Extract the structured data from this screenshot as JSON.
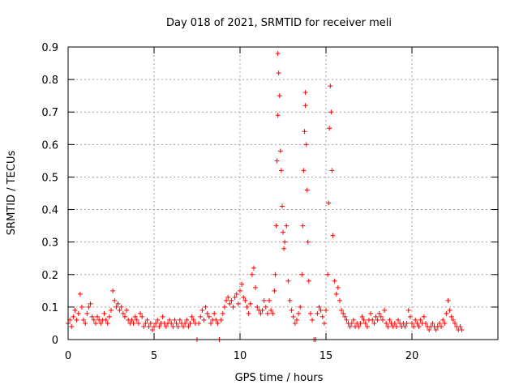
{
  "chart_data": {
    "type": "scatter",
    "title": "Day 018 of 2021, SRMTID for receiver meli",
    "xlabel": "GPS time / hours",
    "ylabel": "SRMTID / TECUs",
    "xlim": [
      0,
      25
    ],
    "ylim": [
      0,
      0.9
    ],
    "xticks": [
      "0",
      "5",
      "10",
      "15",
      "20"
    ],
    "yticks": [
      "0",
      "0.1",
      "0.2",
      "0.3",
      "0.4",
      "0.5",
      "0.6",
      "0.7",
      "0.8",
      "0.9"
    ],
    "grid": true,
    "marker": "+",
    "color": "#ff0000",
    "series": [
      {
        "name": "SRMTID",
        "points": [
          [
            0.0,
            0.05
          ],
          [
            0.1,
            0.06
          ],
          [
            0.2,
            0.04
          ],
          [
            0.3,
            0.07
          ],
          [
            0.4,
            0.09
          ],
          [
            0.5,
            0.06
          ],
          [
            0.6,
            0.08
          ],
          [
            0.7,
            0.14
          ],
          [
            0.8,
            0.1
          ],
          [
            0.9,
            0.06
          ],
          [
            1.0,
            0.05
          ],
          [
            1.1,
            0.08
          ],
          [
            1.2,
            0.1
          ],
          [
            1.3,
            0.11
          ],
          [
            1.4,
            0.07
          ],
          [
            1.5,
            0.06
          ],
          [
            1.6,
            0.05
          ],
          [
            1.7,
            0.07
          ],
          [
            1.8,
            0.06
          ],
          [
            1.9,
            0.05
          ],
          [
            2.0,
            0.06
          ],
          [
            2.1,
            0.08
          ],
          [
            2.2,
            0.06
          ],
          [
            2.3,
            0.05
          ],
          [
            2.4,
            0.07
          ],
          [
            2.5,
            0.09
          ],
          [
            2.6,
            0.15
          ],
          [
            2.7,
            0.12
          ],
          [
            2.8,
            0.1
          ],
          [
            2.9,
            0.11
          ],
          [
            3.0,
            0.09
          ],
          [
            3.1,
            0.1
          ],
          [
            3.2,
            0.08
          ],
          [
            3.3,
            0.07
          ],
          [
            3.4,
            0.09
          ],
          [
            3.5,
            0.06
          ],
          [
            3.6,
            0.05
          ],
          [
            3.7,
            0.06
          ],
          [
            3.8,
            0.05
          ],
          [
            3.9,
            0.07
          ],
          [
            4.0,
            0.06
          ],
          [
            4.1,
            0.05
          ],
          [
            4.2,
            0.08
          ],
          [
            4.3,
            0.07
          ],
          [
            4.4,
            0.04
          ],
          [
            4.5,
            0.05
          ],
          [
            4.6,
            0.06
          ],
          [
            4.7,
            0.04
          ],
          [
            4.8,
            0.05
          ],
          [
            4.9,
            0.03
          ],
          [
            5.0,
            0.04
          ],
          [
            5.1,
            0.05
          ],
          [
            5.2,
            0.06
          ],
          [
            5.3,
            0.04
          ],
          [
            5.4,
            0.05
          ],
          [
            5.5,
            0.07
          ],
          [
            5.6,
            0.05
          ],
          [
            5.7,
            0.04
          ],
          [
            5.8,
            0.05
          ],
          [
            5.9,
            0.06
          ],
          [
            6.0,
            0.05
          ],
          [
            6.1,
            0.04
          ],
          [
            6.2,
            0.06
          ],
          [
            6.3,
            0.05
          ],
          [
            6.4,
            0.04
          ],
          [
            6.5,
            0.06
          ],
          [
            6.6,
            0.05
          ],
          [
            6.7,
            0.04
          ],
          [
            6.8,
            0.05
          ],
          [
            6.9,
            0.06
          ],
          [
            7.0,
            0.04
          ],
          [
            7.1,
            0.05
          ],
          [
            7.2,
            0.07
          ],
          [
            7.3,
            0.06
          ],
          [
            7.4,
            0.05
          ],
          [
            7.5,
            0.0
          ],
          [
            7.6,
            0.05
          ],
          [
            7.7,
            0.07
          ],
          [
            7.8,
            0.09
          ],
          [
            7.9,
            0.06
          ],
          [
            8.0,
            0.1
          ],
          [
            8.1,
            0.08
          ],
          [
            8.2,
            0.07
          ],
          [
            8.3,
            0.05
          ],
          [
            8.4,
            0.06
          ],
          [
            8.5,
            0.08
          ],
          [
            8.6,
            0.06
          ],
          [
            8.7,
            0.05
          ],
          [
            8.8,
            0.0
          ],
          [
            8.9,
            0.06
          ],
          [
            9.0,
            0.08
          ],
          [
            9.1,
            0.1
          ],
          [
            9.2,
            0.12
          ],
          [
            9.3,
            0.13
          ],
          [
            9.4,
            0.11
          ],
          [
            9.5,
            0.12
          ],
          [
            9.6,
            0.1
          ],
          [
            9.7,
            0.13
          ],
          [
            9.8,
            0.14
          ],
          [
            9.9,
            0.11
          ],
          [
            10.0,
            0.15
          ],
          [
            10.1,
            0.17
          ],
          [
            10.2,
            0.13
          ],
          [
            10.3,
            0.12
          ],
          [
            10.4,
            0.1
          ],
          [
            10.5,
            0.08
          ],
          [
            10.6,
            0.11
          ],
          [
            10.7,
            0.2
          ],
          [
            10.8,
            0.22
          ],
          [
            10.9,
            0.16
          ],
          [
            11.0,
            0.1
          ],
          [
            11.1,
            0.09
          ],
          [
            11.2,
            0.08
          ],
          [
            11.3,
            0.09
          ],
          [
            11.4,
            0.12
          ],
          [
            11.5,
            0.1
          ],
          [
            11.6,
            0.08
          ],
          [
            11.7,
            0.12
          ],
          [
            11.8,
            0.09
          ],
          [
            11.9,
            0.08
          ],
          [
            12.0,
            0.15
          ],
          [
            12.05,
            0.2
          ],
          [
            12.1,
            0.35
          ],
          [
            12.15,
            0.55
          ],
          [
            12.2,
            0.69
          ],
          [
            12.2,
            0.88
          ],
          [
            12.25,
            0.82
          ],
          [
            12.3,
            0.75
          ],
          [
            12.35,
            0.58
          ],
          [
            12.4,
            0.52
          ],
          [
            12.45,
            0.41
          ],
          [
            12.5,
            0.33
          ],
          [
            12.55,
            0.28
          ],
          [
            12.6,
            0.3
          ],
          [
            12.7,
            0.35
          ],
          [
            12.8,
            0.18
          ],
          [
            12.9,
            0.12
          ],
          [
            13.0,
            0.09
          ],
          [
            13.1,
            0.07
          ],
          [
            13.2,
            0.05
          ],
          [
            13.3,
            0.06
          ],
          [
            13.4,
            0.08
          ],
          [
            13.5,
            0.1
          ],
          [
            13.6,
            0.2
          ],
          [
            13.65,
            0.35
          ],
          [
            13.7,
            0.52
          ],
          [
            13.75,
            0.64
          ],
          [
            13.8,
            0.72
          ],
          [
            13.8,
            0.76
          ],
          [
            13.85,
            0.6
          ],
          [
            13.9,
            0.46
          ],
          [
            13.95,
            0.3
          ],
          [
            14.0,
            0.18
          ],
          [
            14.1,
            0.08
          ],
          [
            14.2,
            0.06
          ],
          [
            14.3,
            0.0
          ],
          [
            14.4,
            0.0
          ],
          [
            14.5,
            0.08
          ],
          [
            14.6,
            0.1
          ],
          [
            14.7,
            0.09
          ],
          [
            14.8,
            0.07
          ],
          [
            14.9,
            0.05
          ],
          [
            15.0,
            0.09
          ],
          [
            15.1,
            0.2
          ],
          [
            15.15,
            0.42
          ],
          [
            15.2,
            0.65
          ],
          [
            15.25,
            0.78
          ],
          [
            15.3,
            0.7
          ],
          [
            15.35,
            0.52
          ],
          [
            15.4,
            0.32
          ],
          [
            15.5,
            0.18
          ],
          [
            15.6,
            0.14
          ],
          [
            15.7,
            0.16
          ],
          [
            15.8,
            0.12
          ],
          [
            15.9,
            0.09
          ],
          [
            16.0,
            0.08
          ],
          [
            16.1,
            0.07
          ],
          [
            16.2,
            0.06
          ],
          [
            16.3,
            0.05
          ],
          [
            16.4,
            0.04
          ],
          [
            16.5,
            0.05
          ],
          [
            16.6,
            0.06
          ],
          [
            16.7,
            0.04
          ],
          [
            16.8,
            0.05
          ],
          [
            16.9,
            0.04
          ],
          [
            17.0,
            0.05
          ],
          [
            17.1,
            0.07
          ],
          [
            17.2,
            0.06
          ],
          [
            17.3,
            0.05
          ],
          [
            17.4,
            0.04
          ],
          [
            17.5,
            0.06
          ],
          [
            17.6,
            0.08
          ],
          [
            17.7,
            0.06
          ],
          [
            17.8,
            0.05
          ],
          [
            17.9,
            0.07
          ],
          [
            18.0,
            0.06
          ],
          [
            18.1,
            0.08
          ],
          [
            18.2,
            0.07
          ],
          [
            18.3,
            0.06
          ],
          [
            18.4,
            0.09
          ],
          [
            18.5,
            0.05
          ],
          [
            18.6,
            0.04
          ],
          [
            18.7,
            0.06
          ],
          [
            18.8,
            0.05
          ],
          [
            18.9,
            0.04
          ],
          [
            19.0,
            0.05
          ],
          [
            19.1,
            0.04
          ],
          [
            19.2,
            0.06
          ],
          [
            19.3,
            0.05
          ],
          [
            19.4,
            0.04
          ],
          [
            19.5,
            0.05
          ],
          [
            19.6,
            0.04
          ],
          [
            19.7,
            0.05
          ],
          [
            19.8,
            0.09
          ],
          [
            19.9,
            0.07
          ],
          [
            20.0,
            0.05
          ],
          [
            20.1,
            0.04
          ],
          [
            20.2,
            0.06
          ],
          [
            20.3,
            0.05
          ],
          [
            20.4,
            0.04
          ],
          [
            20.5,
            0.06
          ],
          [
            20.6,
            0.05
          ],
          [
            20.7,
            0.07
          ],
          [
            20.8,
            0.05
          ],
          [
            20.9,
            0.04
          ],
          [
            21.0,
            0.03
          ],
          [
            21.1,
            0.04
          ],
          [
            21.2,
            0.05
          ],
          [
            21.3,
            0.04
          ],
          [
            21.4,
            0.03
          ],
          [
            21.5,
            0.04
          ],
          [
            21.6,
            0.05
          ],
          [
            21.7,
            0.04
          ],
          [
            21.8,
            0.06
          ],
          [
            21.9,
            0.05
          ],
          [
            22.0,
            0.08
          ],
          [
            22.1,
            0.12
          ],
          [
            22.2,
            0.09
          ],
          [
            22.3,
            0.07
          ],
          [
            22.4,
            0.06
          ],
          [
            22.5,
            0.05
          ],
          [
            22.6,
            0.04
          ],
          [
            22.7,
            0.03
          ],
          [
            22.8,
            0.04
          ],
          [
            22.9,
            0.03
          ]
        ]
      }
    ]
  }
}
